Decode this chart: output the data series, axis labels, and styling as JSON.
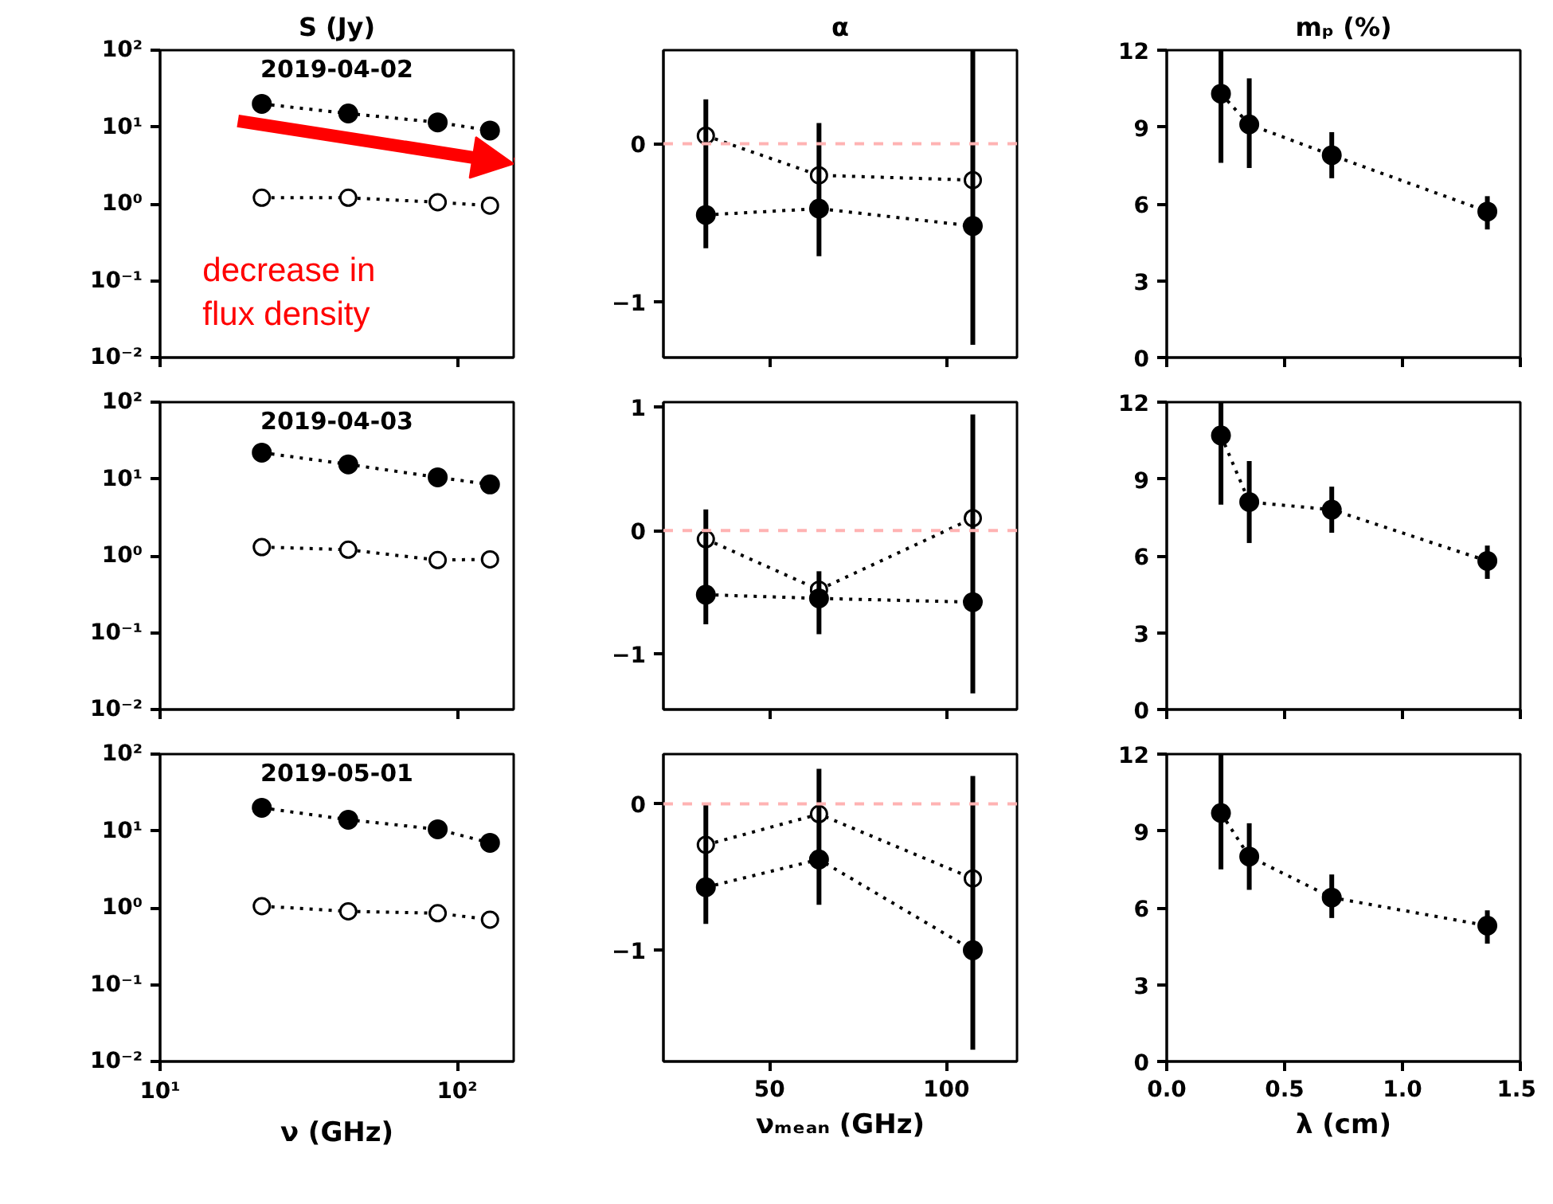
{
  "chart_data": [
    {
      "type": "line",
      "title": "S (Jy)",
      "annotations": [
        "2019-04-02",
        "decrease in flux density"
      ],
      "x": [
        22,
        43,
        86,
        129
      ],
      "log": "xy",
      "xlim": [
        10,
        155
      ],
      "ylim": [
        0.01,
        100
      ],
      "xticks": [
        {
          "value": 10,
          "label": "10¹"
        },
        {
          "value": 100,
          "label": "10²"
        }
      ],
      "yticks": [
        {
          "value": 0.01,
          "label": "10⁻²"
        },
        {
          "value": 0.1,
          "label": "10⁻¹"
        },
        {
          "value": 1,
          "label": "10⁰"
        },
        {
          "value": 10,
          "label": "10¹"
        },
        {
          "value": 100,
          "label": "10²"
        }
      ],
      "tick_labels": "y",
      "line_style": "dotted",
      "marker": "circle",
      "grid": false,
      "series": [
        {
          "color": "#000000",
          "values": [
            20,
            15,
            11.5,
            9
          ]
        },
        {
          "color": "#000000",
          "marker": "circle_open",
          "values": [
            1.2,
            1.2,
            1.05,
            0.95
          ]
        }
      ]
    },
    {
      "type": "line",
      "title": "α",
      "x": [
        32,
        64,
        107.5
      ],
      "xlim": [
        20,
        120
      ],
      "ylim": [
        -1.35,
        0.59
      ],
      "xticks": [
        50,
        100
      ],
      "yticks": [
        {
          "value": 0,
          "label": "0"
        },
        {
          "value": -1,
          "label": "−1"
        }
      ],
      "tick_labels": "y",
      "line_style": "dotted",
      "marker": "circle",
      "grid": false,
      "ref_lines": [
        {
          "axis": "y",
          "value": 0,
          "color": "#ffb3b3",
          "line_style": "dashed"
        }
      ],
      "series": [
        {
          "color": "#000000",
          "marker": "circle_open",
          "values": [
            0.05,
            -0.2,
            -0.23
          ]
        },
        {
          "color": "#000000",
          "values": [
            -0.45,
            -0.41,
            -0.52
          ],
          "errors": [
            [
              -0.66,
              0.28
            ],
            [
              -0.71,
              0.13
            ],
            [
              -1.27,
              0.61
            ]
          ]
        }
      ]
    },
    {
      "type": "line",
      "title": "mₚ (%)",
      "x": [
        0.23,
        0.35,
        0.7,
        1.36
      ],
      "xlim": [
        0,
        1.5
      ],
      "ylim": [
        0,
        12
      ],
      "xticks": [
        {
          "value": 0,
          "label": "0.0"
        },
        0.5,
        {
          "value": 1,
          "label": "1.0"
        },
        1.5
      ],
      "yticks": [
        0,
        3,
        6,
        9,
        12
      ],
      "tick_labels": "y",
      "line_style": "dotted",
      "marker": "circle",
      "grid": false,
      "series": [
        {
          "color": "#000000",
          "values": [
            10.3,
            9.1,
            7.9,
            5.7
          ],
          "errors": [
            [
              7.6,
              12
            ],
            [
              7.4,
              10.9
            ],
            [
              7.0,
              8.8
            ],
            [
              5.0,
              6.3
            ]
          ]
        }
      ]
    },
    {
      "type": "line",
      "annotations": [
        "2019-04-03"
      ],
      "x": [
        22,
        43,
        86,
        129
      ],
      "log": "xy",
      "xlim": [
        10,
        155
      ],
      "ylim": [
        0.01,
        100
      ],
      "xticks": [
        {
          "value": 10,
          "label": "10¹"
        },
        {
          "value": 100,
          "label": "10²"
        }
      ],
      "yticks": [
        {
          "value": 0.01,
          "label": "10⁻²"
        },
        {
          "value": 0.1,
          "label": "10⁻¹"
        },
        {
          "value": 1,
          "label": "10⁰"
        },
        {
          "value": 10,
          "label": "10¹"
        },
        {
          "value": 100,
          "label": "10²"
        }
      ],
      "tick_labels": "y",
      "line_style": "dotted",
      "marker": "circle",
      "grid": false,
      "series": [
        {
          "color": "#000000",
          "values": [
            22,
            15.5,
            10.5,
            8.5
          ]
        },
        {
          "color": "#000000",
          "marker": "circle_open",
          "values": [
            1.3,
            1.2,
            0.88,
            0.9
          ]
        }
      ]
    },
    {
      "type": "line",
      "x": [
        32,
        64,
        107.5
      ],
      "xlim": [
        20,
        120
      ],
      "ylim": [
        -1.45,
        1.04
      ],
      "xticks": [
        50,
        100
      ],
      "yticks": [
        {
          "value": 1,
          "label": "1"
        },
        {
          "value": 0,
          "label": "0"
        },
        {
          "value": -1,
          "label": "−1"
        }
      ],
      "tick_labels": "y",
      "line_style": "dotted",
      "marker": "circle",
      "grid": false,
      "ref_lines": [
        {
          "axis": "y",
          "value": 0,
          "color": "#ffb3b3",
          "line_style": "dashed"
        }
      ],
      "series": [
        {
          "color": "#000000",
          "marker": "circle_open",
          "values": [
            -0.07,
            -0.48,
            0.1
          ]
        },
        {
          "color": "#000000",
          "values": [
            -0.52,
            -0.55,
            -0.58
          ],
          "errors": [
            [
              -0.76,
              0.17
            ],
            [
              -0.84,
              -0.33
            ],
            [
              -1.32,
              0.94
            ]
          ]
        }
      ]
    },
    {
      "type": "line",
      "x": [
        0.23,
        0.35,
        0.7,
        1.36
      ],
      "xlim": [
        0,
        1.5
      ],
      "ylim": [
        0,
        12
      ],
      "xticks": [
        {
          "value": 0,
          "label": "0.0"
        },
        0.5,
        {
          "value": 1,
          "label": "1.0"
        },
        1.5
      ],
      "yticks": [
        0,
        3,
        6,
        9,
        12
      ],
      "tick_labels": "y",
      "line_style": "dotted",
      "marker": "circle",
      "grid": false,
      "series": [
        {
          "color": "#000000",
          "values": [
            10.7,
            8.1,
            7.8,
            5.8
          ],
          "errors": [
            [
              8.0,
              12
            ],
            [
              6.5,
              9.7
            ],
            [
              6.9,
              8.7
            ],
            [
              5.1,
              6.4
            ]
          ]
        }
      ]
    },
    {
      "type": "line",
      "xlabel": "ν (GHz)",
      "annotations": [
        "2019-05-01"
      ],
      "x": [
        22,
        43,
        86,
        129
      ],
      "log": "xy",
      "xlim": [
        10,
        155
      ],
      "ylim": [
        0.01,
        100
      ],
      "xticks": [
        {
          "value": 10,
          "label": "10¹"
        },
        {
          "value": 100,
          "label": "10²"
        }
      ],
      "yticks": [
        {
          "value": 0.01,
          "label": "10⁻²"
        },
        {
          "value": 0.1,
          "label": "10⁻¹"
        },
        {
          "value": 1,
          "label": "10⁰"
        },
        {
          "value": 10,
          "label": "10¹"
        },
        {
          "value": 100,
          "label": "10²"
        }
      ],
      "line_style": "dotted",
      "marker": "circle",
      "grid": false,
      "series": [
        {
          "color": "#000000",
          "values": [
            20,
            14,
            10.5,
            7
          ]
        },
        {
          "color": "#000000",
          "marker": "circle_open",
          "values": [
            1.05,
            0.9,
            0.85,
            0.7
          ]
        }
      ]
    },
    {
      "type": "line",
      "xlabel": "νₘₑₐₙ (GHz)",
      "x": [
        32,
        64,
        107.5
      ],
      "xlim": [
        20,
        120
      ],
      "ylim": [
        -1.76,
        0.34
      ],
      "xticks": [
        50,
        100
      ],
      "yticks": [
        {
          "value": 0,
          "label": "0"
        },
        {
          "value": -1,
          "label": "−1"
        }
      ],
      "line_style": "dotted",
      "marker": "circle",
      "grid": false,
      "ref_lines": [
        {
          "axis": "y",
          "value": 0,
          "color": "#ffb3b3",
          "line_style": "dashed"
        }
      ],
      "series": [
        {
          "color": "#000000",
          "marker": "circle_open",
          "values": [
            -0.28,
            -0.07,
            -0.51
          ]
        },
        {
          "color": "#000000",
          "values": [
            -0.57,
            -0.38,
            -1.0
          ],
          "errors": [
            [
              -0.82,
              0.0
            ],
            [
              -0.69,
              0.24
            ],
            [
              -1.68,
              0.19
            ]
          ]
        }
      ]
    },
    {
      "type": "line",
      "xlabel": "λ (cm)",
      "x": [
        0.23,
        0.35,
        0.7,
        1.36
      ],
      "xlim": [
        0,
        1.5
      ],
      "ylim": [
        0,
        12
      ],
      "xticks": [
        {
          "value": 0,
          "label": "0.0"
        },
        0.5,
        {
          "value": 1,
          "label": "1.0"
        },
        1.5
      ],
      "yticks": [
        0,
        3,
        6,
        9,
        12
      ],
      "line_style": "dotted",
      "marker": "circle",
      "grid": false,
      "series": [
        {
          "color": "#000000",
          "values": [
            9.7,
            8.0,
            6.4,
            5.3
          ],
          "errors": [
            [
              7.5,
              12
            ],
            [
              6.7,
              9.3
            ],
            [
              5.6,
              7.3
            ],
            [
              4.6,
              5.9
            ]
          ]
        }
      ]
    }
  ]
}
